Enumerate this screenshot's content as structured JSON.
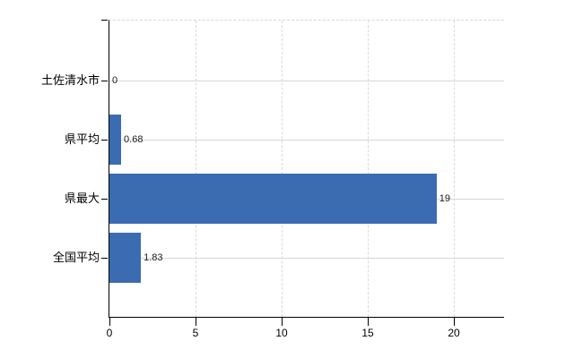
{
  "chart_data": {
    "type": "bar",
    "orientation": "horizontal",
    "title": "",
    "categories": [
      "土佐清水市",
      "県平均",
      "県最大",
      "全国平均"
    ],
    "values": [
      0,
      0.68,
      19,
      1.83
    ],
    "value_labels": [
      "0",
      "0.68",
      "19",
      "1.83"
    ],
    "x_ticks": [
      0,
      5,
      10,
      15,
      20
    ],
    "x_tick_labels": [
      "0",
      "5",
      "10",
      "15",
      "20"
    ],
    "xlim": [
      0,
      22.9
    ],
    "grid": {
      "vertical": "dashed",
      "horizontal": "solid"
    },
    "legend": "none",
    "colors": {
      "bar": "#3b6cb2",
      "gridline": "#d6d6d6",
      "dashed_gridline": "#d9d9d9",
      "axis": "#000000",
      "background": "#ffffff",
      "label_text": "#1a1a1a"
    }
  }
}
